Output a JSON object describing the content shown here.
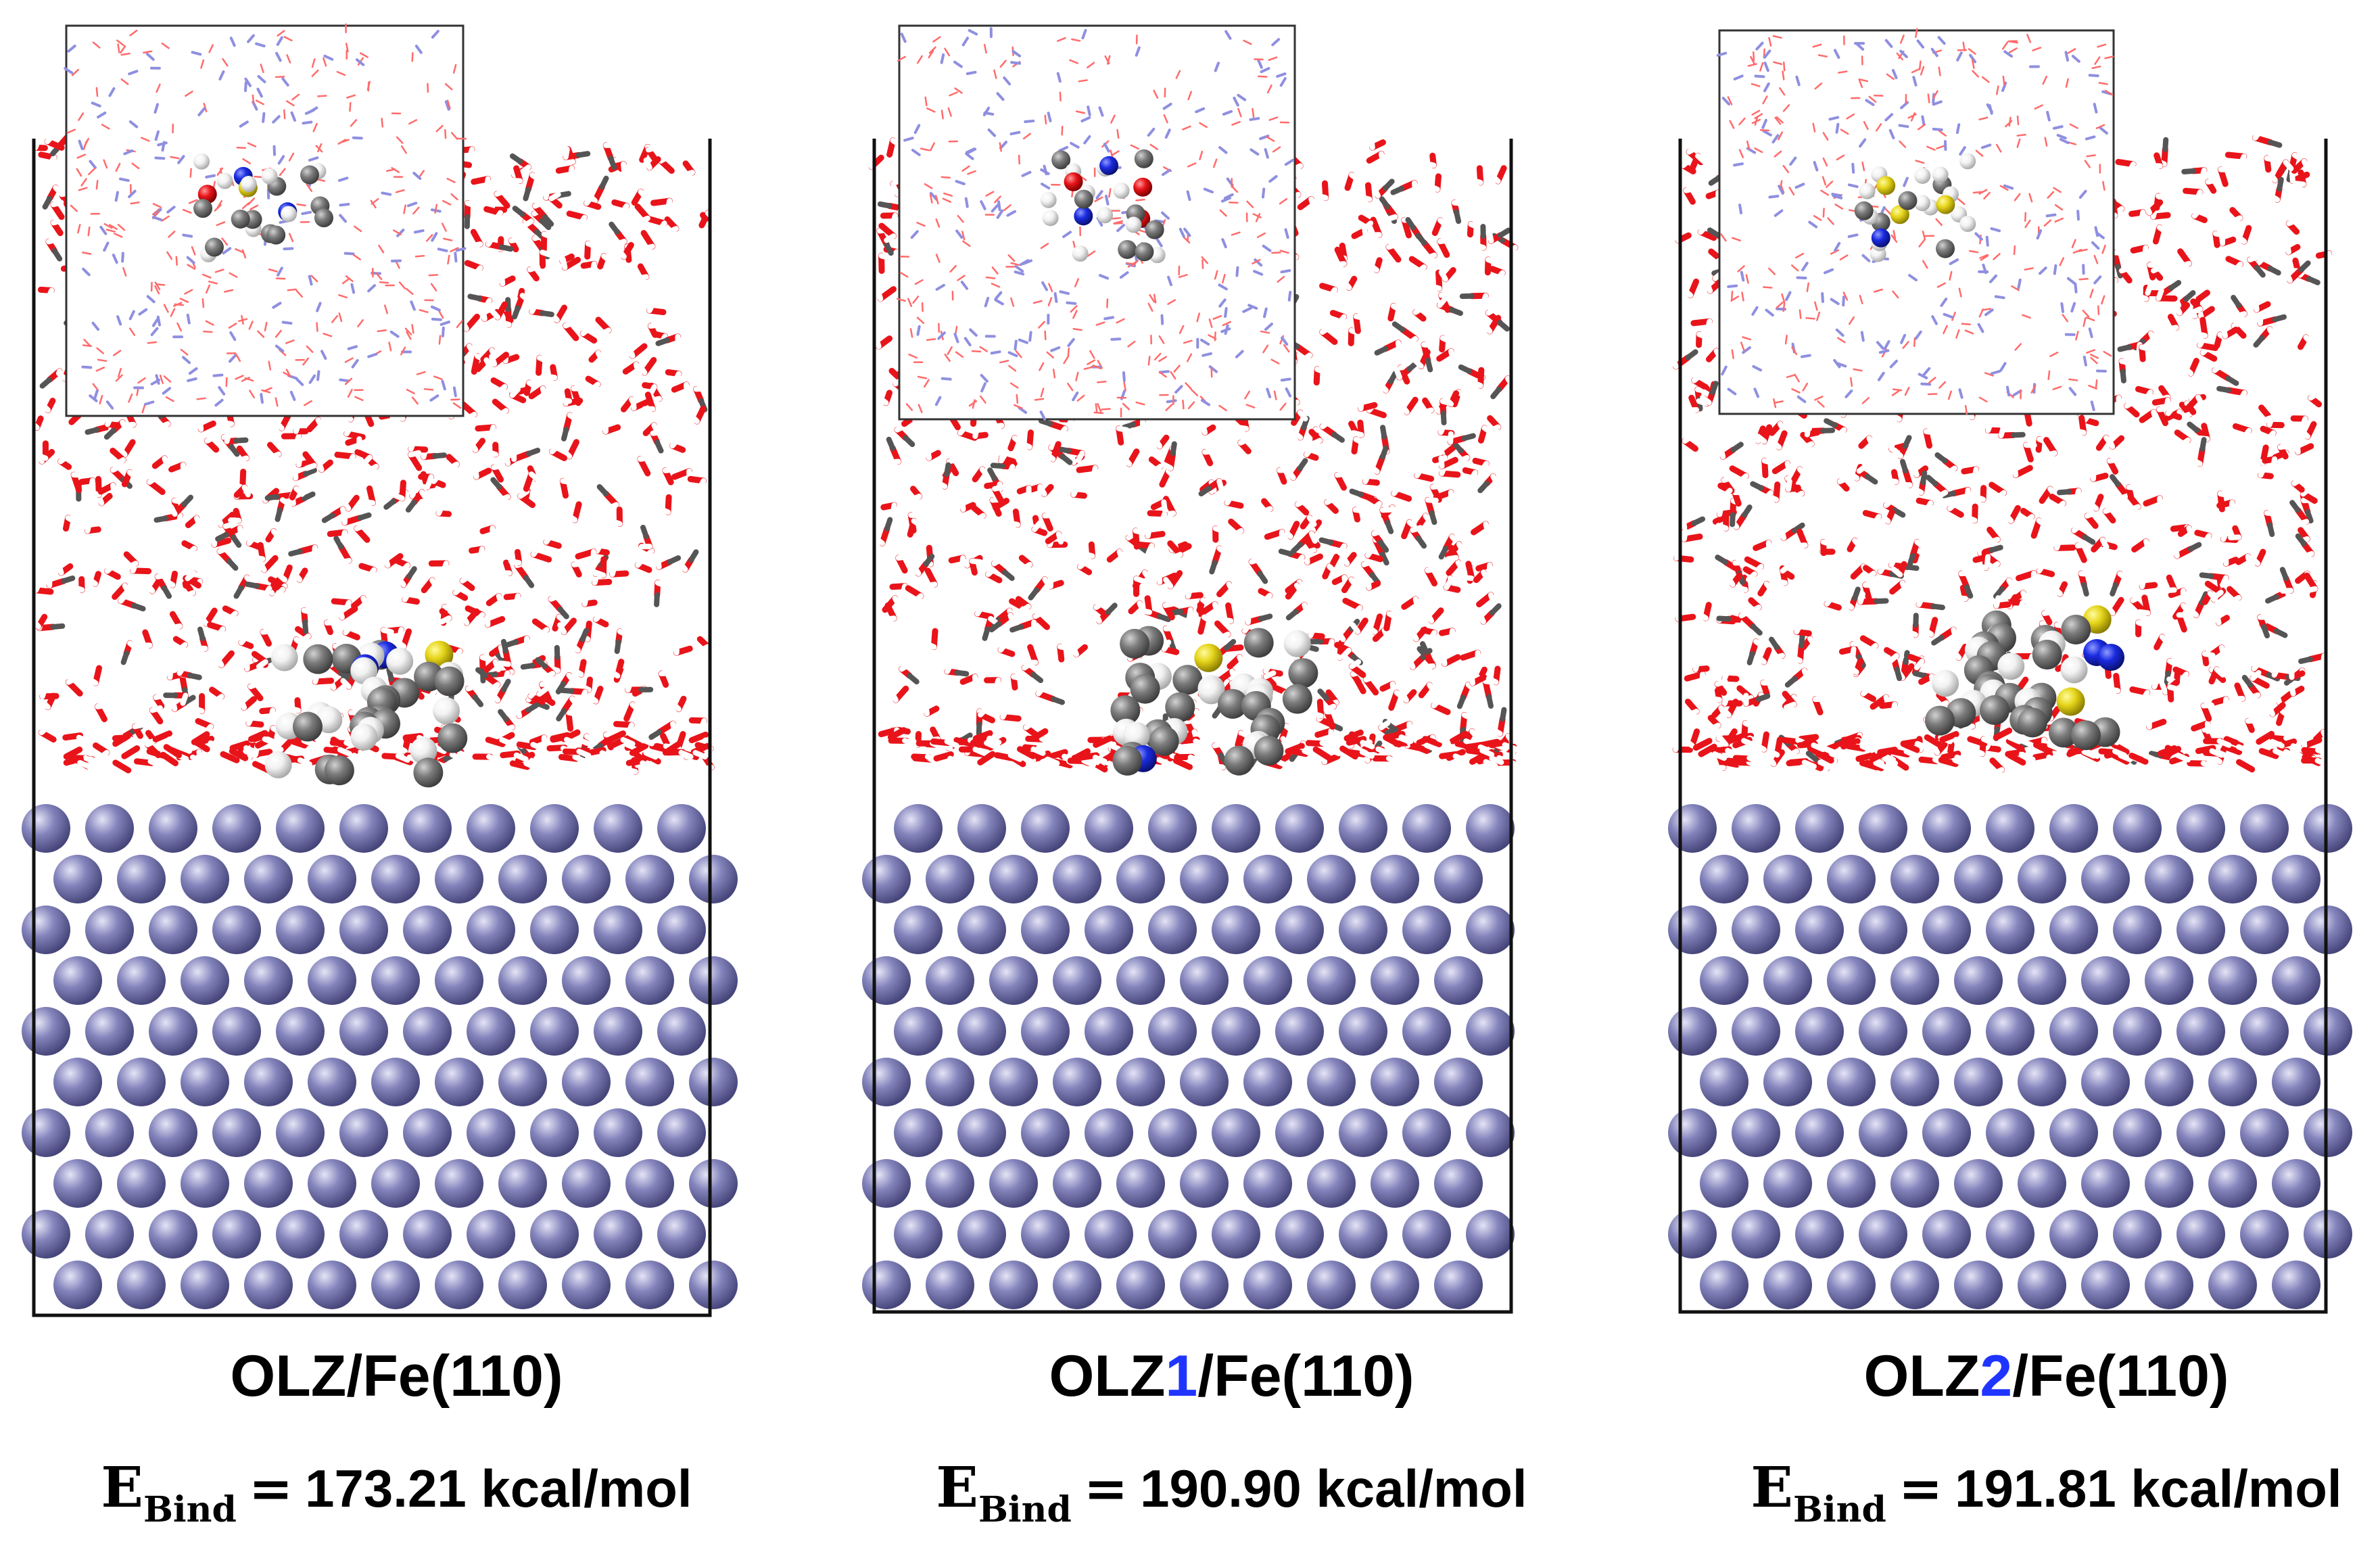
{
  "panels": [
    {
      "title_prefix": "OLZ",
      "title_accent": "",
      "title_suffix": "/Fe(110)",
      "energy_symbol": "E",
      "energy_subscript": "Bind",
      "energy_equals": "=",
      "energy_value": "173.21 kcal/mol"
    },
    {
      "title_prefix": "OLZ",
      "title_accent": "1",
      "title_suffix": "/Fe(110)",
      "energy_symbol": "E",
      "energy_subscript": "Bind",
      "energy_equals": "=",
      "energy_value": "190.90 kcal/mol"
    },
    {
      "title_prefix": "OLZ",
      "title_accent": "2",
      "title_suffix": "/Fe(110)",
      "energy_symbol": "E",
      "energy_subscript": "Bind",
      "energy_equals": "=",
      "energy_value": "191.81 kcal/mol"
    }
  ],
  "colors": {
    "iron_atom": "#8585bd",
    "oxygen": "#e8141a",
    "hydrogen": "#f2f2f2",
    "carbon": "#7c7c7c",
    "nitrogen": "#1a2be0",
    "sulfur": "#e6d51a",
    "accent_label": "#1f35ff"
  }
}
